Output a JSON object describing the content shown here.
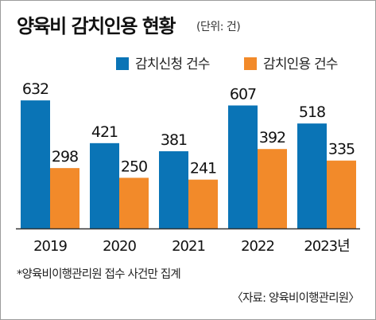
{
  "title": "양육비 감치인용 현황",
  "unit": "(단위: 건)",
  "note": "*양육비이행관리원 접수 사건만 집계",
  "source": "〈자료: 양육비이행관리원〉",
  "colors": {
    "series1": "#0a74b6",
    "series2": "#f28a2a",
    "axis": "#333333"
  },
  "chart_data": {
    "type": "bar",
    "categories": [
      "2019",
      "2020",
      "2021",
      "2022",
      "2023년"
    ],
    "series": [
      {
        "name": "감치신청 건수",
        "values": [
          632,
          421,
          381,
          607,
          518
        ]
      },
      {
        "name": "감치인용 건수",
        "values": [
          298,
          250,
          241,
          392,
          335
        ]
      }
    ],
    "ylim": [
      0,
      660
    ],
    "xlabel": "",
    "ylabel": "",
    "grid": false,
    "legend": "top-right"
  }
}
